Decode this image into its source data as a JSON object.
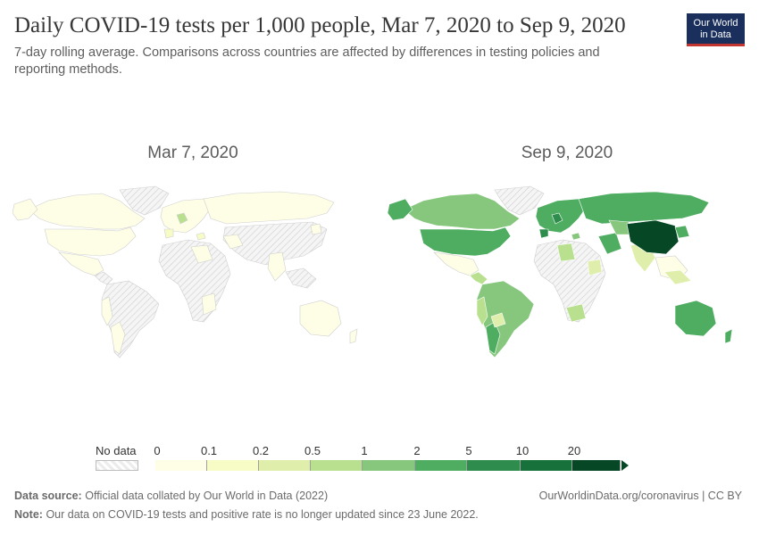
{
  "header": {
    "title": "Daily COVID-19 tests per 1,000 people, Mar 7, 2020 to Sep 9, 2020",
    "subtitle": "7-day rolling average. Comparisons across countries are affected by differences in testing policies and reporting methods."
  },
  "logo": {
    "line1": "Our World",
    "line2": "in Data"
  },
  "maps": [
    {
      "label": "Mar 7, 2020"
    },
    {
      "label": "Sep 9, 2020"
    }
  ],
  "legend": {
    "no_data_label": "No data",
    "ticks": [
      "0",
      "0.1",
      "0.2",
      "0.5",
      "1",
      "2",
      "5",
      "10",
      "20"
    ],
    "colors": [
      "#fefee6",
      "#f7fbc6",
      "#dfefab",
      "#b8e08f",
      "#86c77d",
      "#4ead61",
      "#2e8c4c",
      "#16713a",
      "#064725"
    ]
  },
  "footer": {
    "source_label": "Data source:",
    "source_text": "Official data collated by Our World in Data (2022)",
    "note_label": "Note:",
    "note_text": "Our data on COVID-19 tests and positive rate is no longer updated since 23 June 2022.",
    "link": "OurWorldinData.org/coronavirus | CC BY"
  }
}
